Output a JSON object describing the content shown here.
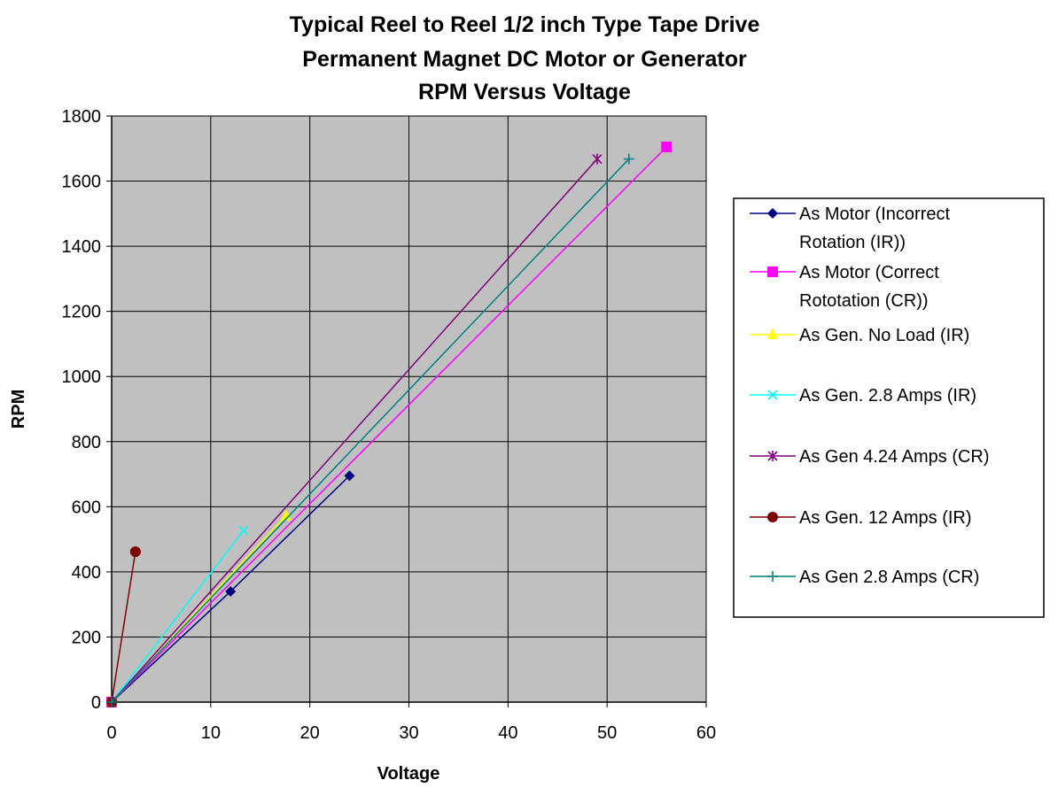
{
  "chart_data": {
    "type": "line",
    "title": "Typical Reel to Reel 1/2 inch Type Tape Drive",
    "subtitle": [
      "Permanent Magnet DC Motor or Generator",
      "RPM Versus Voltage"
    ],
    "xlabel": "Voltage",
    "ylabel": "RPM",
    "xlim": [
      0,
      60
    ],
    "ylim": [
      0,
      1800
    ],
    "xticks": [
      0,
      10,
      20,
      30,
      40,
      50,
      60
    ],
    "yticks": [
      0,
      200,
      400,
      600,
      800,
      1000,
      1200,
      1400,
      1600,
      1800
    ],
    "grid": true,
    "plot_background": "#c0c0c0",
    "legend_position": "right",
    "series": [
      {
        "name": "As Motor (Incorrect Rotation (IR))",
        "legend_lines": [
          "As Motor (Incorrect",
          "Rotation (IR))"
        ],
        "color": "#000080",
        "marker": "diamond",
        "points": [
          [
            0,
            0
          ],
          [
            12,
            340
          ],
          [
            24,
            695
          ]
        ]
      },
      {
        "name": "As Motor (Correct Rototation (CR))",
        "legend_lines": [
          "As Motor (Correct",
          "Rototation (CR))"
        ],
        "color": "#ff00ff",
        "marker": "square",
        "points": [
          [
            0,
            0
          ],
          [
            56,
            1705
          ]
        ]
      },
      {
        "name": "As Gen. No Load (IR)",
        "legend_lines": [
          "As Gen. No Load (IR)"
        ],
        "color": "#ffff00",
        "marker": "triangle",
        "points": [
          [
            0,
            0
          ],
          [
            17.6,
            572
          ]
        ]
      },
      {
        "name": "As Gen. 2.8 Amps (IR)",
        "legend_lines": [
          "As Gen. 2.8 Amps (IR)"
        ],
        "color": "#00ffff",
        "marker": "x",
        "points": [
          [
            0,
            0
          ],
          [
            13.3,
            527
          ]
        ]
      },
      {
        "name": "As Gen 4.24 Amps (CR)",
        "legend_lines": [
          "As Gen 4.24 Amps (CR)"
        ],
        "color": "#800080",
        "marker": "star",
        "points": [
          [
            0,
            0
          ],
          [
            49,
            1668
          ]
        ]
      },
      {
        "name": "As Gen. 12 Amps (IR)",
        "legend_lines": [
          "As Gen. 12 Amps (IR)"
        ],
        "color": "#800000",
        "marker": "circle",
        "points": [
          [
            0,
            0
          ],
          [
            2.4,
            462
          ]
        ]
      },
      {
        "name": "As Gen 2.8 Amps (CR)",
        "legend_lines": [
          "As Gen 2.8 Amps (CR)"
        ],
        "color": "#008080",
        "marker": "plus",
        "points": [
          [
            0,
            0
          ],
          [
            52.2,
            1668
          ]
        ]
      }
    ]
  }
}
